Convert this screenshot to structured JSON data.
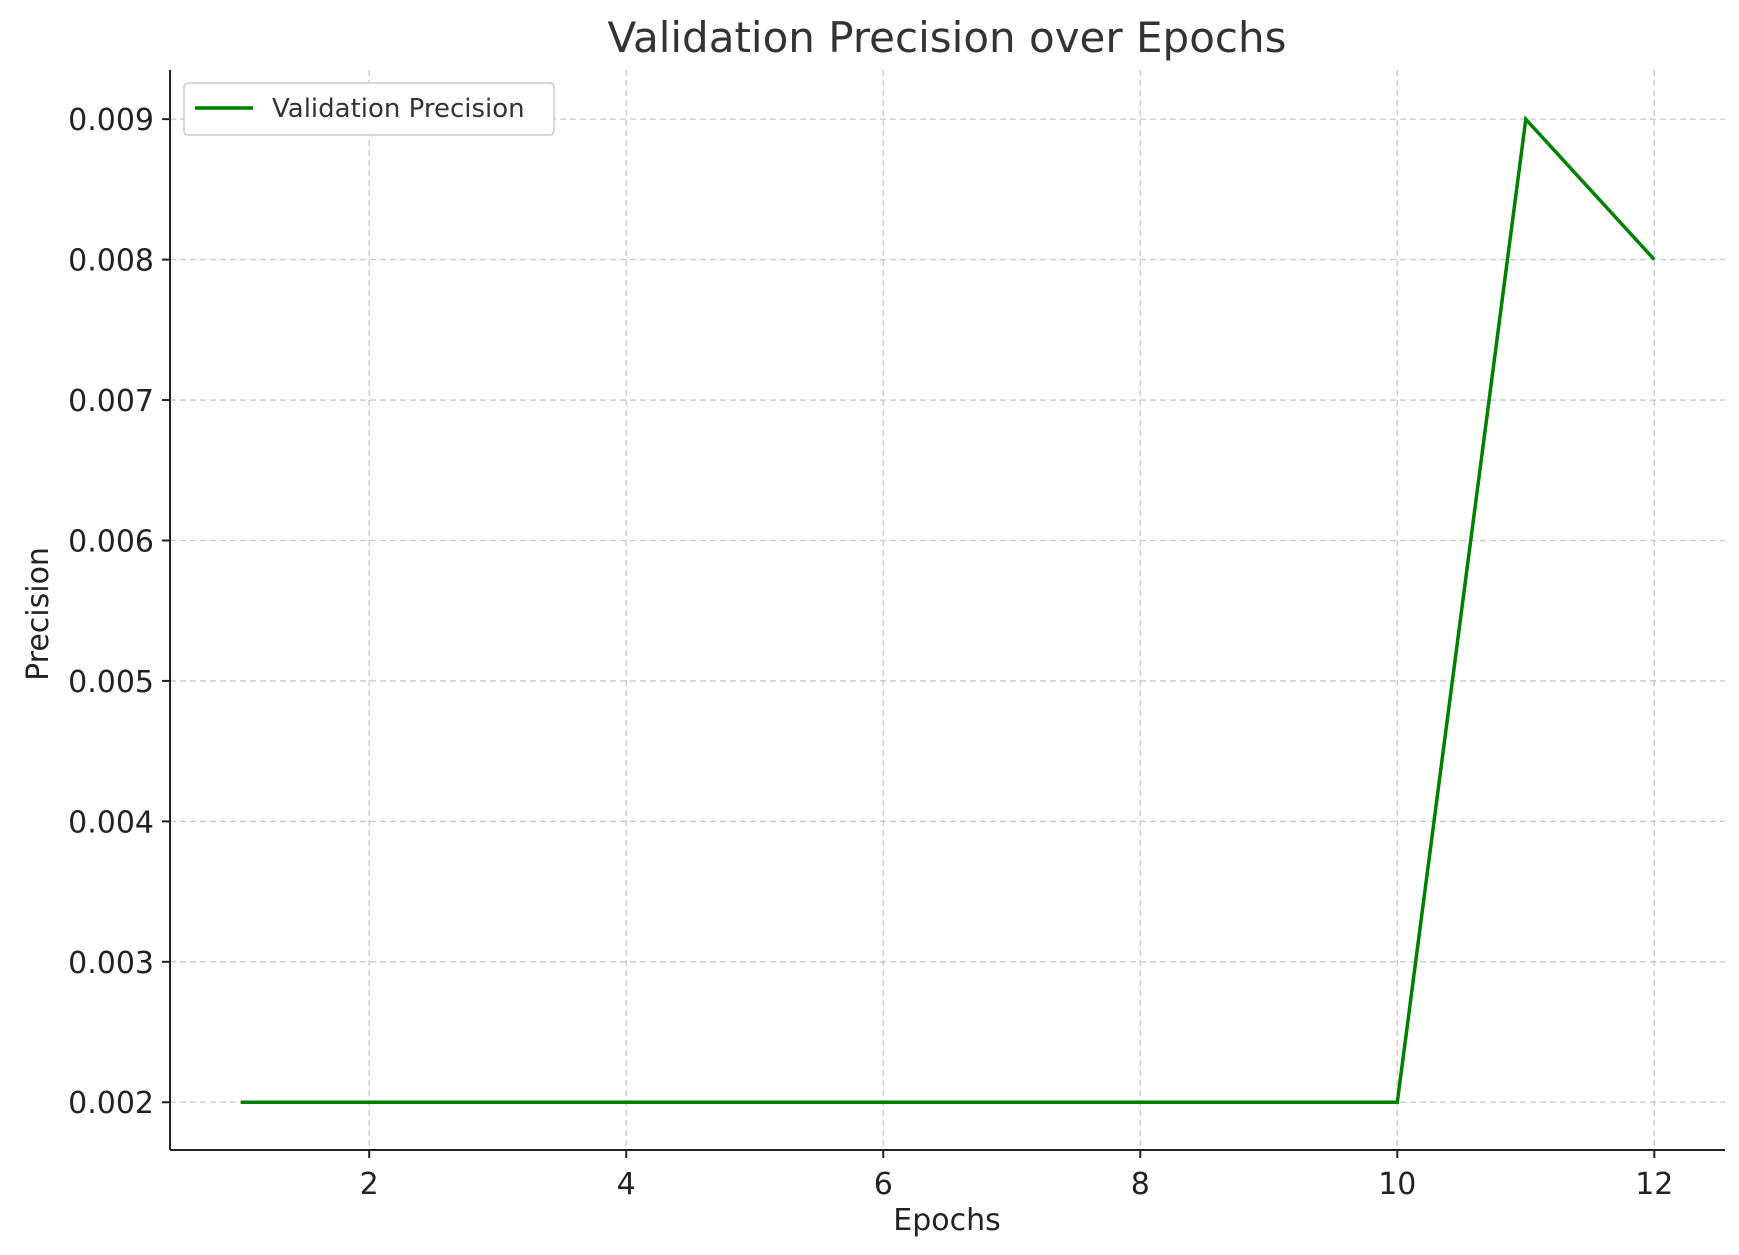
{
  "chart_data": {
    "type": "line",
    "title": "Validation Precision over Epochs",
    "xlabel": "Epochs",
    "ylabel": "Precision",
    "xlim": [
      0.45,
      12.55
    ],
    "ylim": [
      0.00166,
      0.00935
    ],
    "xticks": [
      2,
      4,
      6,
      8,
      10,
      12
    ],
    "xtick_labels": [
      "2",
      "4",
      "6",
      "8",
      "10",
      "12"
    ],
    "yticks": [
      0.002,
      0.003,
      0.004,
      0.005,
      0.006,
      0.007,
      0.008,
      0.009
    ],
    "ytick_labels": [
      "0.002",
      "0.003",
      "0.004",
      "0.005",
      "0.006",
      "0.007",
      "0.008",
      "0.009"
    ],
    "grid": true,
    "legend_position": "top-left",
    "series": [
      {
        "name": "Validation Precision",
        "color": "#008000",
        "x": [
          1,
          2,
          3,
          4,
          5,
          6,
          7,
          8,
          9,
          10,
          11,
          12
        ],
        "y": [
          0.002,
          0.002,
          0.002,
          0.002,
          0.002,
          0.002,
          0.002,
          0.002,
          0.002,
          0.002,
          0.009,
          0.008
        ]
      }
    ]
  }
}
